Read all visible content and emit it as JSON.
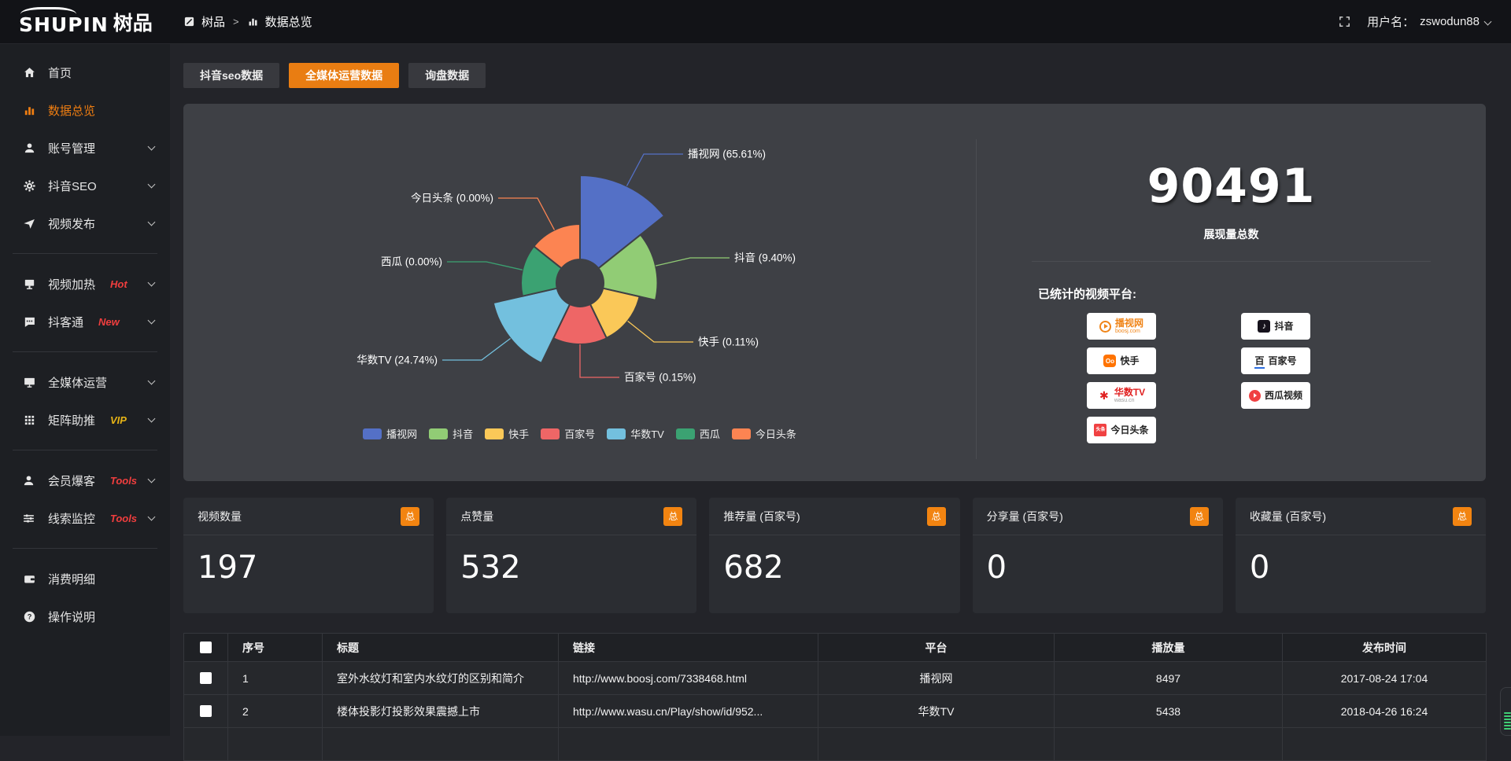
{
  "topbar": {
    "logo_main": "SHUPIN",
    "logo_sub": "树品",
    "breadcrumb": [
      "树品",
      "数据总览"
    ],
    "breadcrumb_separator": ">",
    "username_label": "用户名：",
    "username": "zswodun88"
  },
  "sidebar": {
    "items": [
      {
        "label": "首页",
        "icon": "home"
      },
      {
        "label": "数据总览",
        "icon": "chart",
        "active": true
      },
      {
        "label": "账号管理",
        "icon": "user",
        "chevron": true
      },
      {
        "label": "抖音SEO",
        "icon": "gear",
        "chevron": true
      },
      {
        "label": "视频发布",
        "icon": "send",
        "chevron": true,
        "divider_after": true
      },
      {
        "label": "视频加热",
        "icon": "heat",
        "tag": "Hot",
        "tag_color": "red",
        "chevron": true
      },
      {
        "label": "抖客通",
        "icon": "chat",
        "tag": "New",
        "tag_color": "red",
        "chevron": true,
        "divider_after": true
      },
      {
        "label": "全媒体运营",
        "icon": "monitor",
        "chevron": true
      },
      {
        "label": "矩阵助推",
        "icon": "grid",
        "tag": "VIP",
        "tag_color": "gold",
        "chevron": true,
        "divider_after": true
      },
      {
        "label": "会员爆客",
        "icon": "user",
        "tag": "Tools",
        "tag_color": "red",
        "chevron": true
      },
      {
        "label": "线索监控",
        "icon": "sliders",
        "tag": "Tools",
        "tag_color": "red",
        "chevron": true,
        "divider_after": true
      },
      {
        "label": "消费明细",
        "icon": "wallet"
      },
      {
        "label": "操作说明",
        "icon": "help"
      }
    ]
  },
  "tabs": [
    {
      "label": "抖音seo数据",
      "active": false
    },
    {
      "label": "全媒体运营数据",
      "active": true
    },
    {
      "label": "询盘数据",
      "active": false
    }
  ],
  "chart_data": {
    "type": "pie",
    "variant": "nightingale-rose",
    "legend_position": "bottom",
    "series": [
      {
        "name": "播视网",
        "value_pct": 65.61,
        "label": "播视网 (65.61%)",
        "color": "#5470c6"
      },
      {
        "name": "抖音",
        "value_pct": 9.4,
        "label": "抖音 (9.40%)",
        "color": "#91cc75"
      },
      {
        "name": "快手",
        "value_pct": 0.11,
        "label": "快手 (0.11%)",
        "color": "#fac858"
      },
      {
        "name": "百家号",
        "value_pct": 0.15,
        "label": "百家号 (0.15%)",
        "color": "#ee6666"
      },
      {
        "name": "华数TV",
        "value_pct": 24.74,
        "label": "华数TV (24.74%)",
        "color": "#73c0de"
      },
      {
        "name": "西瓜",
        "value_pct": 0.0,
        "label": "西瓜 (0.00%)",
        "color": "#3ba272"
      },
      {
        "name": "今日头条",
        "value_pct": 0.0,
        "label": "今日头条 (0.00%)",
        "color": "#fc8452"
      }
    ]
  },
  "summary": {
    "total_value": "90491",
    "total_label": "展现量总数",
    "platforms_title": "已统计的视频平台:",
    "platform_columns": [
      [
        {
          "name": "播视网",
          "sub": "boosj.com",
          "icon": "boosj"
        },
        {
          "name": "快手",
          "icon": "kuaishou"
        },
        {
          "name": "华数TV",
          "sub": "wasu.cn",
          "icon": "wasu"
        },
        {
          "name": "今日头条",
          "icon": "toutiao"
        }
      ],
      [
        {
          "name": "抖音",
          "icon": "douyin"
        },
        {
          "name": "百家号",
          "icon": "baijiahao"
        },
        {
          "name": "西瓜视频",
          "icon": "xigua"
        }
      ]
    ]
  },
  "stat_cards": [
    {
      "label": "视频数量",
      "badge": "总",
      "value": "197"
    },
    {
      "label": "点赞量",
      "badge": "总",
      "value": "532"
    },
    {
      "label": "推荐量 (百家号)",
      "badge": "总",
      "value": "682"
    },
    {
      "label": "分享量 (百家号)",
      "badge": "总",
      "value": "0"
    },
    {
      "label": "收藏量 (百家号)",
      "badge": "总",
      "value": "0"
    }
  ],
  "table": {
    "headers": [
      "序号",
      "标题",
      "链接",
      "平台",
      "播放量",
      "发布时间"
    ],
    "rows": [
      {
        "no": "1",
        "title": "室外水纹灯和室内水纹灯的区别和简介",
        "link": "http://www.boosj.com/7338468.html",
        "platform": "播视网",
        "plays": "8497",
        "time": "2017-08-24 17:04"
      },
      {
        "no": "2",
        "title": "楼体投影灯投影效果震撼上市",
        "link": "http://www.wasu.cn/Play/show/id/952...",
        "platform": "华数TV",
        "plays": "5438",
        "time": "2018-04-26 16:24"
      }
    ]
  },
  "colors": {
    "accent_orange": "#ee7d11",
    "link_orange": "#e0862b",
    "panel_bg": "#3e4045",
    "tag_red": "#f03e3e",
    "tag_gold": "#e7b416"
  }
}
